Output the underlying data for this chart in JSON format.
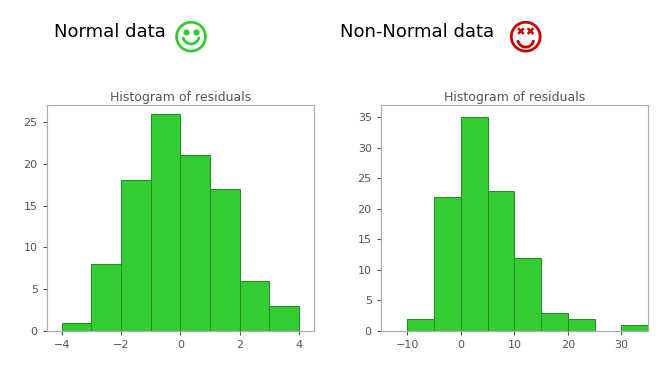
{
  "left_title": "Normal data",
  "right_title": "Non-Normal data",
  "subplot_title": "Histogram of residuals",
  "bar_color": "#33cc33",
  "bar_edgecolor": "#228B22",
  "background_color": "#ffffff",
  "left_bin_edges": [
    -4,
    -3,
    -2,
    -1,
    0,
    1,
    2,
    3,
    4
  ],
  "left_heights": [
    1,
    8,
    18,
    26,
    21,
    17,
    6,
    3
  ],
  "left_xlim": [
    -4.5,
    4.5
  ],
  "left_xticks": [
    -4,
    -2,
    0,
    2,
    4
  ],
  "left_ylim": [
    0,
    27
  ],
  "left_yticks": [
    0,
    5,
    10,
    15,
    20,
    25
  ],
  "right_bin_edges": [
    -15,
    -10,
    -5,
    0,
    5,
    10,
    15,
    20,
    25,
    30,
    35
  ],
  "right_heights": [
    0,
    2,
    22,
    35,
    23,
    12,
    3,
    2,
    0,
    1
  ],
  "right_xlim": [
    -15,
    35
  ],
  "right_xticks": [
    -10,
    0,
    10,
    20,
    30
  ],
  "right_ylim": [
    0,
    37
  ],
  "right_yticks": [
    0,
    5,
    10,
    15,
    20,
    25,
    30,
    35
  ],
  "smiley_color": "#33cc33",
  "frown_color": "#cc0000",
  "title_fontsize": 13,
  "subtitle_fontsize": 9,
  "tick_fontsize": 8,
  "tick_color": "#555555",
  "spine_color": "#aaaaaa"
}
